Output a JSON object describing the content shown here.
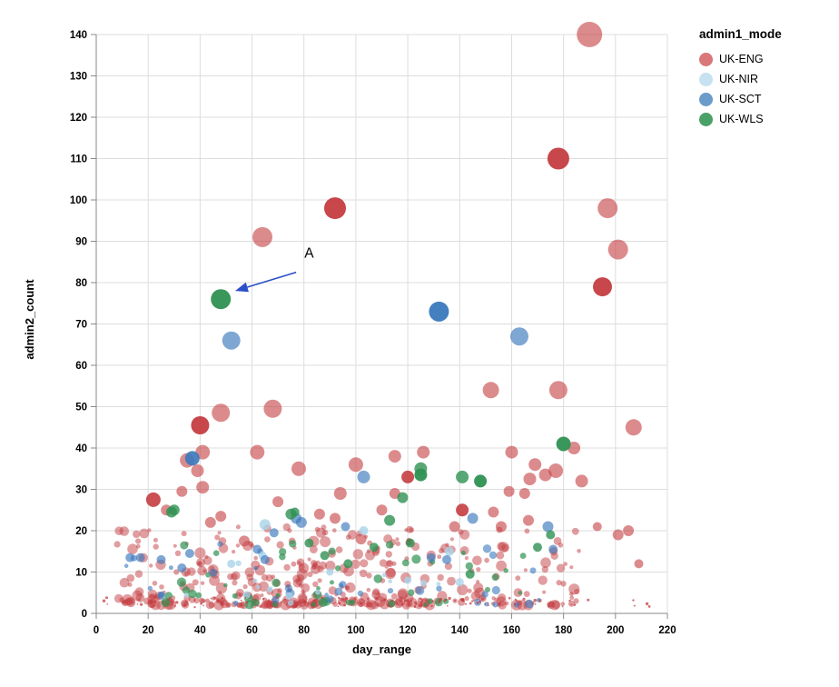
{
  "chart_data": {
    "type": "scatter",
    "title": "",
    "xlabel": "day_range",
    "ylabel": "admin2_count",
    "xlim": [
      0,
      220
    ],
    "ylim": [
      0,
      140
    ],
    "x_ticks": [
      0,
      20,
      40,
      60,
      80,
      100,
      120,
      140,
      160,
      180,
      200,
      220
    ],
    "y_ticks": [
      0,
      10,
      20,
      30,
      40,
      50,
      60,
      70,
      80,
      90,
      100,
      110,
      120,
      130,
      140
    ],
    "grid": true,
    "grid_color": "#dddddd",
    "axis_color": "#888888",
    "tick_label_color": "#000000",
    "legend": {
      "title": "admin1_mode",
      "position": "top-right",
      "entries": [
        {
          "label": "UK-ENG",
          "color": "#d9777b"
        },
        {
          "label": "UK-NIR",
          "color": "#c6e1f0"
        },
        {
          "label": "UK-SCT",
          "color": "#6b9bc9"
        },
        {
          "label": "UK-WLS",
          "color": "#4aa168"
        }
      ]
    },
    "annotation": {
      "label": "A",
      "label_xy": [
        82,
        86
      ],
      "arrow_from": [
        77,
        82.5
      ],
      "arrow_to": [
        53.5,
        78
      ],
      "color": "#2b50c8"
    },
    "series": [
      {
        "name": "UK-ENG",
        "color": "#c43d41",
        "default_opacity": 0.6,
        "points": [
          [
            190,
            140,
            14
          ],
          [
            178,
            110,
            12,
            0.95
          ],
          [
            92,
            98,
            12,
            0.95
          ],
          [
            197,
            98,
            11
          ],
          [
            64,
            91,
            11
          ],
          [
            201,
            88,
            11
          ],
          [
            195,
            79,
            10.5,
            0.95
          ],
          [
            152,
            54,
            9
          ],
          [
            178,
            54,
            10
          ],
          [
            207,
            45,
            9
          ],
          [
            40,
            45.5,
            10,
            0.95
          ],
          [
            48,
            48.5,
            10
          ],
          [
            68,
            49.5,
            10
          ],
          [
            35,
            37,
            8
          ],
          [
            41,
            39,
            8
          ],
          [
            39,
            34.5,
            7
          ],
          [
            62,
            39,
            8
          ],
          [
            78,
            35,
            8
          ],
          [
            100,
            36,
            8
          ],
          [
            94,
            29,
            7
          ],
          [
            115,
            38,
            7
          ],
          [
            126,
            39,
            7
          ],
          [
            120,
            33,
            7,
            0.9
          ],
          [
            160,
            39,
            7
          ],
          [
            169,
            36,
            7
          ],
          [
            177,
            34.5,
            8
          ],
          [
            173,
            33.5,
            7
          ],
          [
            167,
            32.5,
            7
          ],
          [
            184,
            40,
            7
          ],
          [
            187,
            32,
            7
          ],
          [
            22,
            27.5,
            8,
            0.9
          ],
          [
            41,
            30.5,
            7
          ],
          [
            33,
            29.5,
            6
          ],
          [
            27,
            25,
            6
          ],
          [
            70,
            27,
            6
          ],
          [
            86,
            24,
            6
          ],
          [
            92,
            23,
            6
          ],
          [
            110,
            25,
            6
          ],
          [
            115,
            29,
            6
          ],
          [
            141,
            25,
            7,
            0.9
          ],
          [
            138,
            21,
            6
          ],
          [
            153,
            24.5,
            6
          ],
          [
            156,
            21,
            6
          ],
          [
            159,
            29.5,
            6
          ],
          [
            165,
            29,
            6
          ],
          [
            166.5,
            22.5,
            6
          ],
          [
            201,
            19,
            6
          ],
          [
            205,
            20,
            6
          ],
          [
            209,
            12,
            5
          ],
          [
            193,
            21,
            5
          ],
          [
            57,
            17.5,
            6
          ],
          [
            102,
            18,
            6
          ],
          [
            48,
            23.5,
            6
          ],
          [
            44,
            22,
            6
          ]
        ]
      },
      {
        "name": "UK-NIR",
        "color": "#a9d3e9",
        "default_opacity": 0.8,
        "points": [
          [
            65,
            21.5,
            6
          ],
          [
            136,
            15,
            5
          ],
          [
            64,
            14,
            4.5
          ],
          [
            103,
            20,
            5
          ],
          [
            52,
            12,
            4.5
          ],
          [
            90,
            10,
            4
          ],
          [
            120,
            8,
            4
          ]
        ]
      },
      {
        "name": "UK-SCT",
        "color": "#3a78bd",
        "default_opacity": 0.65,
        "points": [
          [
            132,
            73,
            11,
            0.95
          ],
          [
            163,
            67,
            10
          ],
          [
            52,
            66,
            10
          ],
          [
            37,
            37.5,
            8,
            0.9
          ],
          [
            103,
            33,
            7
          ],
          [
            77,
            23,
            6
          ],
          [
            79,
            22,
            6
          ],
          [
            145,
            23,
            6
          ],
          [
            174,
            21,
            6
          ],
          [
            176,
            15.5,
            5
          ],
          [
            129,
            13.5,
            5
          ],
          [
            135,
            13,
            5
          ],
          [
            13,
            13.5,
            5
          ],
          [
            17,
            13.5,
            5
          ],
          [
            68.5,
            19.5,
            5
          ],
          [
            62,
            15.5,
            5
          ],
          [
            65,
            13,
            5
          ],
          [
            36,
            14.5,
            5
          ],
          [
            33,
            11,
            5
          ],
          [
            25,
            13,
            5
          ],
          [
            96,
            21,
            5
          ]
        ]
      },
      {
        "name": "UK-WLS",
        "color": "#2f9152",
        "default_opacity": 0.8,
        "points": [
          [
            48,
            76,
            11,
            0.95
          ],
          [
            180,
            41,
            8,
            0.95
          ],
          [
            125,
            35,
            7
          ],
          [
            125,
            33.5,
            7,
            0.95
          ],
          [
            141,
            33,
            7
          ],
          [
            148,
            32,
            7,
            0.95
          ],
          [
            30,
            25,
            6
          ],
          [
            75,
            24,
            6
          ],
          [
            113,
            22.5,
            6
          ],
          [
            118,
            28,
            6
          ],
          [
            121,
            17,
            5
          ],
          [
            144,
            9.5,
            5
          ],
          [
            170,
            16,
            5
          ],
          [
            175,
            19,
            5
          ],
          [
            82,
            17,
            5
          ],
          [
            88,
            14,
            5
          ],
          [
            97,
            12,
            5
          ],
          [
            76.5,
            24.5,
            5
          ],
          [
            107,
            16,
            5
          ],
          [
            29,
            24.5,
            6
          ]
        ]
      }
    ],
    "cloud": {
      "seed": 1234,
      "note": "dense low-count scatter cloud (hundreds of small overlapping points, mostly UK-ENG, y mostly under 20)",
      "groups": [
        {
          "series": "UK-ENG",
          "count": 430,
          "x_mix": [
            {
              "w": 0.62,
              "min": 8,
              "max": 122
            },
            {
              "w": 0.38,
              "min": 52,
              "max": 186
            }
          ],
          "y_min": 2,
          "y_max": 21,
          "y_pow": 2.1,
          "r_min": 2,
          "r_max": 6.2,
          "opacity": 0.5
        },
        {
          "series": "UK-WLS",
          "count": 48,
          "x_mix": [
            {
              "w": 1,
              "min": 25,
              "max": 165
            }
          ],
          "y_min": 2,
          "y_max": 17,
          "y_pow": 1.8,
          "r_min": 2.2,
          "r_max": 5.2,
          "opacity": 0.7
        },
        {
          "series": "UK-SCT",
          "count": 34,
          "x_mix": [
            {
              "w": 1,
              "min": 8,
              "max": 172
            }
          ],
          "y_min": 2,
          "y_max": 17,
          "y_pow": 1.8,
          "r_min": 2.2,
          "r_max": 5.2,
          "opacity": 0.6
        },
        {
          "series": "UK-NIR",
          "count": 14,
          "x_mix": [
            {
              "w": 1,
              "min": 30,
              "max": 150
            }
          ],
          "y_min": 2.5,
          "y_max": 15,
          "y_pow": 1.6,
          "r_min": 2.2,
          "r_max": 4.6,
          "opacity": 0.75
        },
        {
          "series": "UK-ENG",
          "count": 120,
          "x_mix": [
            {
              "w": 0.85,
              "min": 2,
              "max": 150
            },
            {
              "w": 0.15,
              "min": 140,
              "max": 215
            }
          ],
          "y_min": 1.5,
          "y_max": 3.8,
          "y_pow": 1,
          "r_min": 0.8,
          "r_max": 1.8,
          "opacity": 0.75
        }
      ]
    }
  }
}
